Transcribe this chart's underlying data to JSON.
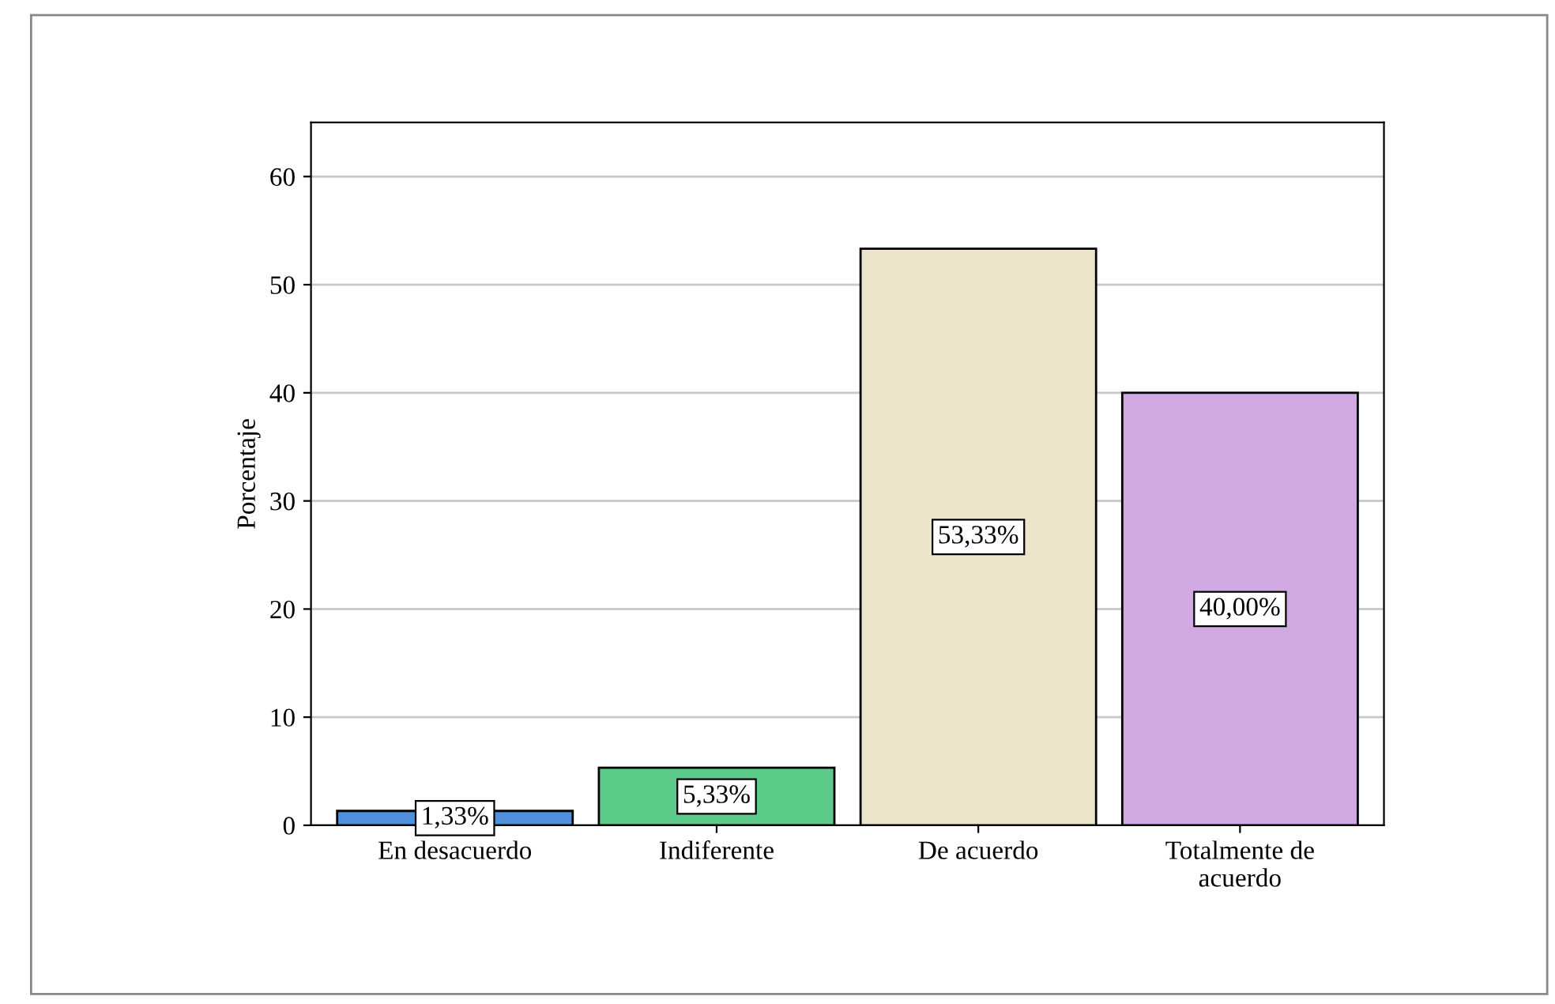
{
  "chart_data": {
    "type": "bar",
    "ylabel": "Porcentaje",
    "categories": [
      "En desacuerdo",
      "Indiferente",
      "De acuerdo",
      "Totalmente de\nacuerdo"
    ],
    "values": [
      1.33,
      5.33,
      53.33,
      40.0
    ],
    "colors": [
      "#4f8fdc",
      "#5ccb8a",
      "#ede4cc",
      "#d0a9e3"
    ],
    "value_labels": [
      "1,33%",
      "5,33%",
      "53,33%",
      "40,00%"
    ],
    "ylim": [
      0,
      65
    ],
    "yticks": [
      0,
      10,
      20,
      30,
      40,
      50,
      60
    ],
    "grid": "y",
    "legend": false
  }
}
